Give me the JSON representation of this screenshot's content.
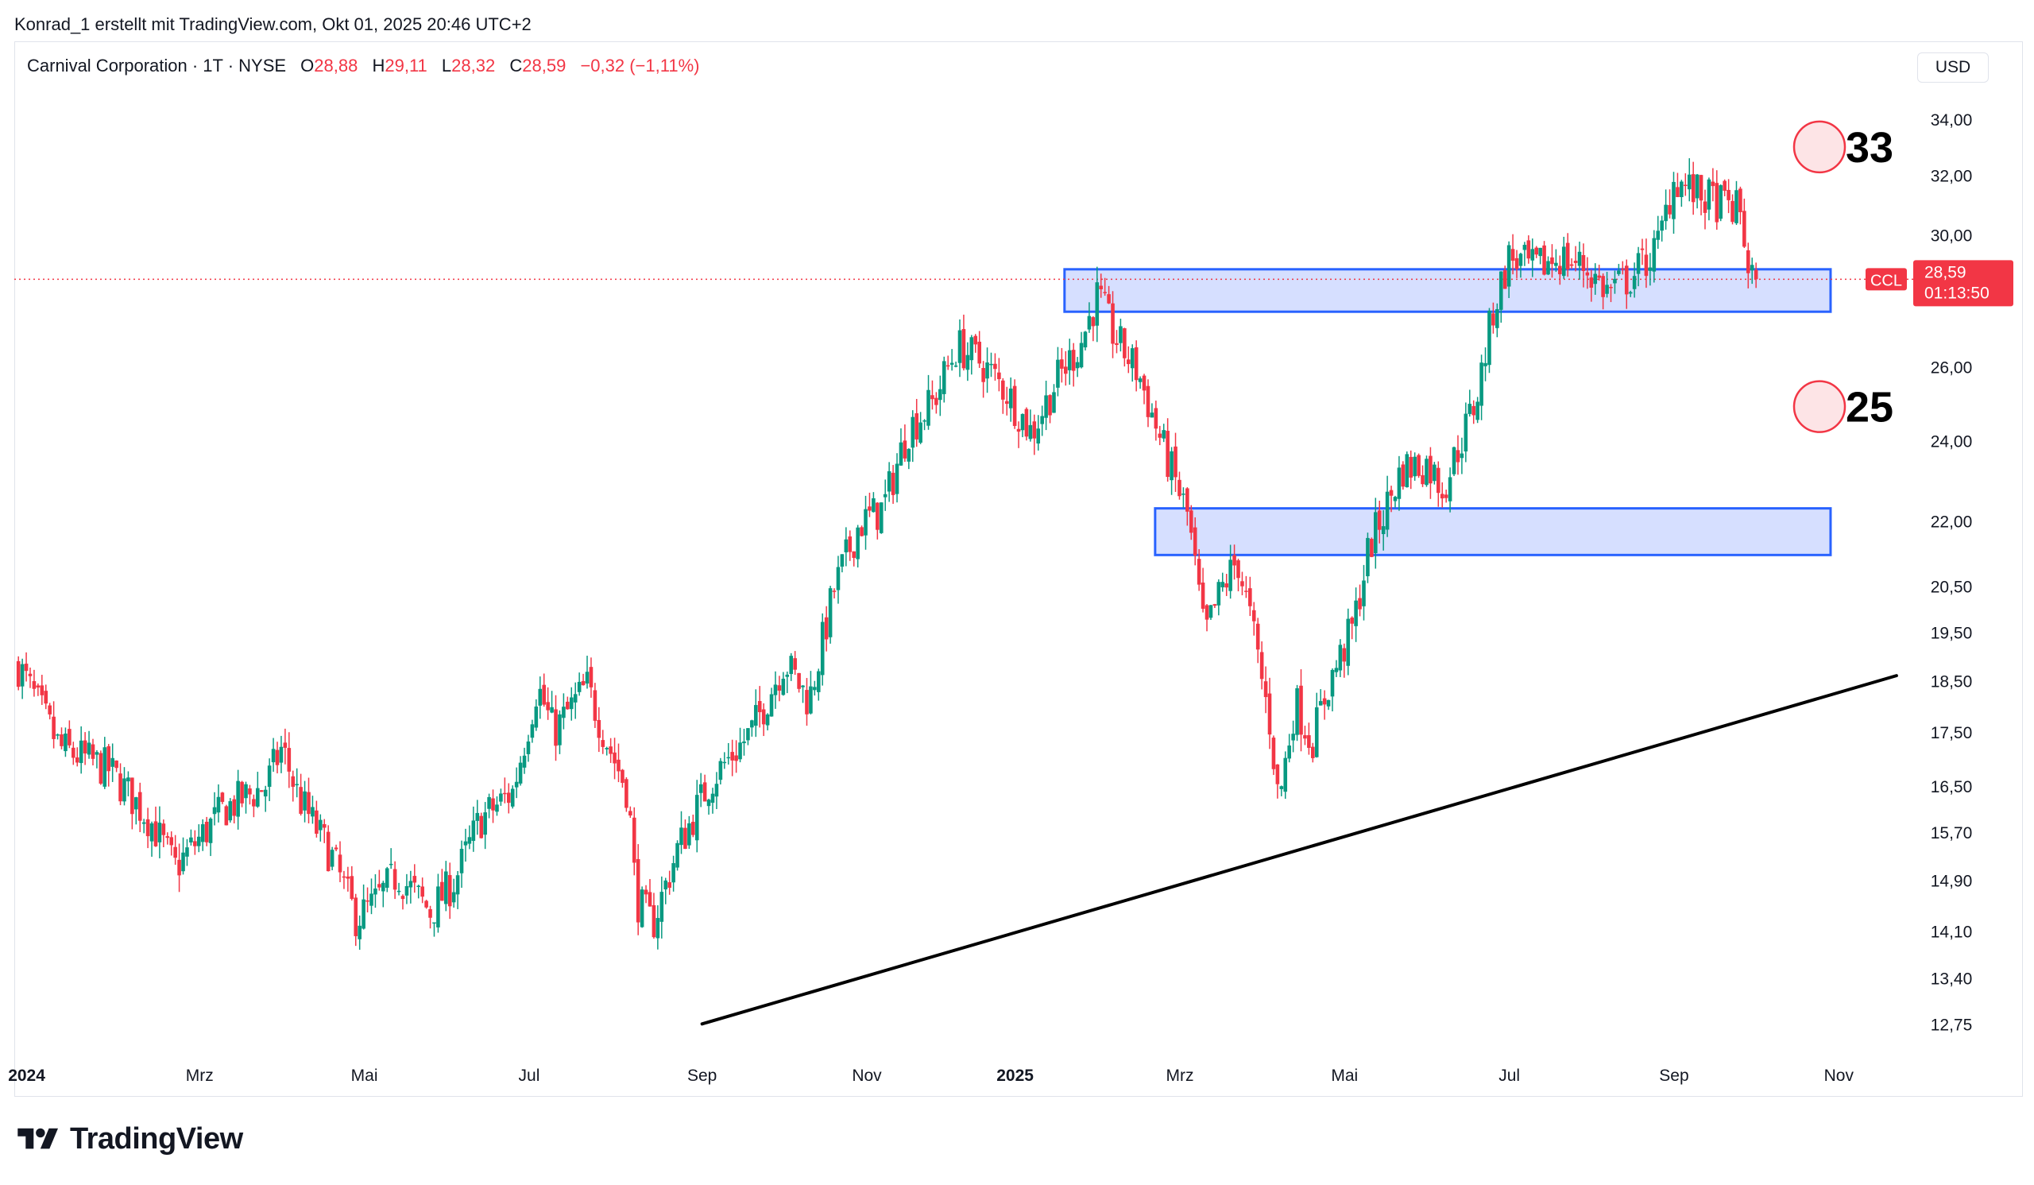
{
  "header": {
    "attribution": "Konrad_1 erstellt mit TradingView.com, Okt 01, 2025 20:46 UTC+2"
  },
  "legend": {
    "symbol": "Carnival Corporation · 1T · NYSE",
    "open_label": "O",
    "open": "28,88",
    "high_label": "H",
    "high": "29,11",
    "low_label": "L",
    "low": "28,32",
    "close_label": "C",
    "close": "28,59",
    "change": "−0,32 (−1,11%)"
  },
  "currency": "USD",
  "price_tag": {
    "ticker": "CCL",
    "price": "28,59",
    "countdown": "01:13:50"
  },
  "brand": "TradingView",
  "colors": {
    "up": "#089981",
    "down": "#f23645",
    "zone_fill": "#d1dcff",
    "zone_stroke": "#2962ff",
    "trendline": "#000000",
    "target_circle": "#fde4e6"
  },
  "chart_data": {
    "type": "candlestick",
    "title": "Carnival Corporation · 1T · NYSE",
    "xlabel": "",
    "ylabel": "USD",
    "y_scale": "log",
    "ylim": [
      12.3,
      35.2
    ],
    "y_ticks": [
      {
        "value": 34.0,
        "label": "34,00"
      },
      {
        "value": 32.0,
        "label": "32,00"
      },
      {
        "value": 30.0,
        "label": "30,00"
      },
      {
        "value": 26.0,
        "label": "26,00"
      },
      {
        "value": 24.0,
        "label": "24,00"
      },
      {
        "value": 22.0,
        "label": "22,00"
      },
      {
        "value": 20.5,
        "label": "20,50"
      },
      {
        "value": 19.5,
        "label": "19,50"
      },
      {
        "value": 18.5,
        "label": "18,50"
      },
      {
        "value": 17.5,
        "label": "17,50"
      },
      {
        "value": 16.5,
        "label": "16,50"
      },
      {
        "value": 15.7,
        "label": "15,70"
      },
      {
        "value": 14.9,
        "label": "14,90"
      },
      {
        "value": 14.1,
        "label": "14,10"
      },
      {
        "value": 13.4,
        "label": "13,40"
      },
      {
        "value": 12.75,
        "label": "12,75"
      }
    ],
    "x_ticks": [
      {
        "t": 0.0,
        "label": "2024",
        "bold": true
      },
      {
        "t": 2.1,
        "label": "Mrz",
        "bold": false
      },
      {
        "t": 4.1,
        "label": "Mai",
        "bold": false
      },
      {
        "t": 6.1,
        "label": "Jul",
        "bold": false
      },
      {
        "t": 8.2,
        "label": "Sep",
        "bold": false
      },
      {
        "t": 10.2,
        "label": "Nov",
        "bold": false
      },
      {
        "t": 12.0,
        "label": "2025",
        "bold": true
      },
      {
        "t": 14.0,
        "label": "Mrz",
        "bold": false
      },
      {
        "t": 16.0,
        "label": "Mai",
        "bold": false
      },
      {
        "t": 18.0,
        "label": "Jul",
        "bold": false
      },
      {
        "t": 20.0,
        "label": "Sep",
        "bold": false
      },
      {
        "t": 22.0,
        "label": "Nov",
        "bold": false
      }
    ],
    "time_unit": "months since Jan 2024",
    "x_range": [
      -0.15,
      23.0
    ],
    "path_keyframes": [
      [
        -0.1,
        18.8
      ],
      [
        0.4,
        17.2
      ],
      [
        1.0,
        16.8
      ],
      [
        1.5,
        15.9
      ],
      [
        1.8,
        15.1
      ],
      [
        2.4,
        16.1
      ],
      [
        2.9,
        16.5
      ],
      [
        3.1,
        17.2
      ],
      [
        3.3,
        16.3
      ],
      [
        3.7,
        15.3
      ],
      [
        4.0,
        14.3
      ],
      [
        4.2,
        14.5
      ],
      [
        4.5,
        15.0
      ],
      [
        4.9,
        14.4
      ],
      [
        5.2,
        14.9
      ],
      [
        5.5,
        15.9
      ],
      [
        5.9,
        16.4
      ],
      [
        6.2,
        18.4
      ],
      [
        6.4,
        17.5
      ],
      [
        6.8,
        18.4
      ],
      [
        7.1,
        17.1
      ],
      [
        7.3,
        16.4
      ],
      [
        7.4,
        14.6
      ],
      [
        7.6,
        14.2
      ],
      [
        7.9,
        15.4
      ],
      [
        8.3,
        16.6
      ],
      [
        8.8,
        17.5
      ],
      [
        9.2,
        18.9
      ],
      [
        9.5,
        18.1
      ],
      [
        9.8,
        20.4
      ],
      [
        10.1,
        21.9
      ],
      [
        10.4,
        22.3
      ],
      [
        10.7,
        24.3
      ],
      [
        11.0,
        25.0
      ],
      [
        11.3,
        26.6
      ],
      [
        11.6,
        26.1
      ],
      [
        11.9,
        25.3
      ],
      [
        12.2,
        24.2
      ],
      [
        12.5,
        25.6
      ],
      [
        12.8,
        26.7
      ],
      [
        13.0,
        28.1
      ],
      [
        13.2,
        26.9
      ],
      [
        13.5,
        25.8
      ],
      [
        13.8,
        23.8
      ],
      [
        14.1,
        22.1
      ],
      [
        14.3,
        19.4
      ],
      [
        14.5,
        20.4
      ],
      [
        14.7,
        21.1
      ],
      [
        14.9,
        19.4
      ],
      [
        15.1,
        17.6
      ],
      [
        15.2,
        16.2
      ],
      [
        15.4,
        18.1
      ],
      [
        15.6,
        17.3
      ],
      [
        15.8,
        18.4
      ],
      [
        16.1,
        19.6
      ],
      [
        16.3,
        21.4
      ],
      [
        16.5,
        22.3
      ],
      [
        16.7,
        23.3
      ],
      [
        17.0,
        23.4
      ],
      [
        17.2,
        22.8
      ],
      [
        17.6,
        25.1
      ],
      [
        17.8,
        27.6
      ],
      [
        18.0,
        29.3
      ],
      [
        18.3,
        28.9
      ],
      [
        18.6,
        29.3
      ],
      [
        18.9,
        29.0
      ],
      [
        19.2,
        28.2
      ],
      [
        19.5,
        28.7
      ],
      [
        19.8,
        29.6
      ],
      [
        20.0,
        31.9
      ],
      [
        20.3,
        31.3
      ],
      [
        20.6,
        31.0
      ],
      [
        20.8,
        30.8
      ],
      [
        20.9,
        29.0
      ],
      [
        21.0,
        28.59
      ]
    ],
    "y_positions_note": "approximate daily candles reconstructed from path keyframes",
    "zones": [
      {
        "name": "resistance-zone-upper",
        "t_start": 12.6,
        "t_end": 21.9,
        "low": 27.6,
        "high": 28.9
      },
      {
        "name": "support-zone-lower",
        "t_start": 13.7,
        "t_end": 21.9,
        "low": 21.2,
        "high": 22.3
      }
    ],
    "trendline": {
      "t1": 8.2,
      "p1": 12.75,
      "t2": 22.7,
      "p2": 18.6
    },
    "current_price": {
      "value": 28.59,
      "label": "28,59"
    },
    "targets": [
      {
        "label": "33",
        "value": 33.0
      },
      {
        "label": "25",
        "value": 24.9
      }
    ]
  }
}
